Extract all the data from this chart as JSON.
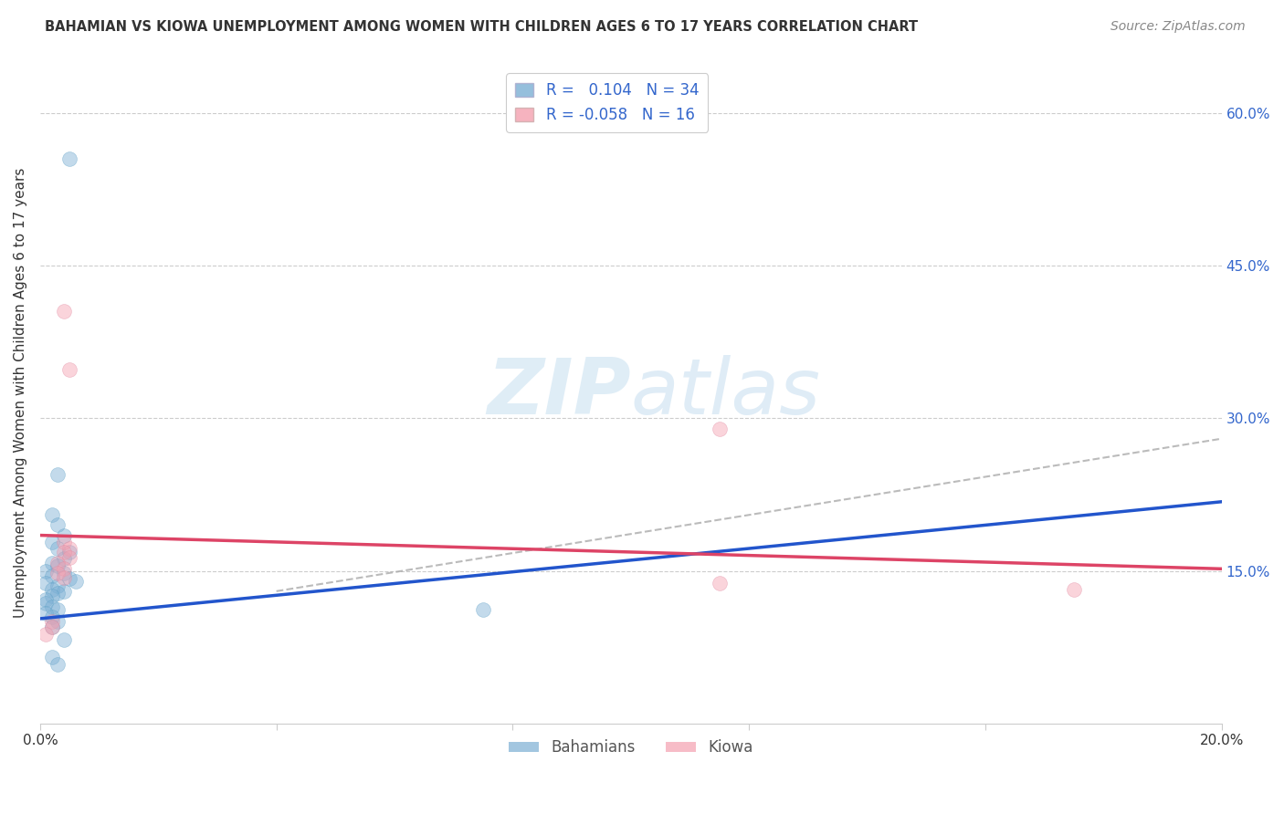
{
  "title": "BAHAMIAN VS KIOWA UNEMPLOYMENT AMONG WOMEN WITH CHILDREN AGES 6 TO 17 YEARS CORRELATION CHART",
  "source": "Source: ZipAtlas.com",
  "ylabel": "Unemployment Among Women with Children Ages 6 to 17 years",
  "xlim": [
    0.0,
    0.2
  ],
  "ylim": [
    0.0,
    0.65
  ],
  "xticks": [
    0.0,
    0.04,
    0.08,
    0.12,
    0.16,
    0.2
  ],
  "xtick_labels": [
    "0.0%",
    "",
    "",
    "",
    "",
    "20.0%"
  ],
  "ytick_labels_right": [
    "60.0%",
    "45.0%",
    "30.0%",
    "15.0%"
  ],
  "ytick_vals_right": [
    0.6,
    0.45,
    0.3,
    0.15
  ],
  "bahamian_points": [
    [
      0.005,
      0.555
    ],
    [
      0.003,
      0.245
    ],
    [
      0.002,
      0.205
    ],
    [
      0.003,
      0.195
    ],
    [
      0.004,
      0.185
    ],
    [
      0.002,
      0.178
    ],
    [
      0.003,
      0.172
    ],
    [
      0.005,
      0.168
    ],
    [
      0.004,
      0.162
    ],
    [
      0.002,
      0.158
    ],
    [
      0.003,
      0.155
    ],
    [
      0.001,
      0.15
    ],
    [
      0.004,
      0.148
    ],
    [
      0.002,
      0.145
    ],
    [
      0.005,
      0.142
    ],
    [
      0.006,
      0.14
    ],
    [
      0.001,
      0.138
    ],
    [
      0.003,
      0.135
    ],
    [
      0.002,
      0.132
    ],
    [
      0.004,
      0.13
    ],
    [
      0.003,
      0.128
    ],
    [
      0.002,
      0.125
    ],
    [
      0.001,
      0.122
    ],
    [
      0.001,
      0.118
    ],
    [
      0.002,
      0.115
    ],
    [
      0.003,
      0.112
    ],
    [
      0.001,
      0.108
    ],
    [
      0.002,
      0.105
    ],
    [
      0.003,
      0.1
    ],
    [
      0.002,
      0.095
    ],
    [
      0.004,
      0.082
    ],
    [
      0.002,
      0.065
    ],
    [
      0.003,
      0.058
    ],
    [
      0.075,
      0.112
    ]
  ],
  "kiowa_points": [
    [
      0.004,
      0.405
    ],
    [
      0.005,
      0.348
    ],
    [
      0.004,
      0.178
    ],
    [
      0.005,
      0.172
    ],
    [
      0.004,
      0.168
    ],
    [
      0.005,
      0.163
    ],
    [
      0.003,
      0.158
    ],
    [
      0.004,
      0.152
    ],
    [
      0.003,
      0.148
    ],
    [
      0.004,
      0.143
    ],
    [
      0.002,
      0.1
    ],
    [
      0.002,
      0.095
    ],
    [
      0.001,
      0.088
    ],
    [
      0.115,
      0.29
    ],
    [
      0.115,
      0.138
    ],
    [
      0.175,
      0.132
    ]
  ],
  "blue_line": {
    "x0": 0.0,
    "y0": 0.103,
    "x1": 0.2,
    "y1": 0.218
  },
  "pink_line": {
    "x0": 0.0,
    "y0": 0.185,
    "x1": 0.2,
    "y1": 0.152
  },
  "dashed_line": {
    "x0": 0.04,
    "y0": 0.13,
    "x1": 0.2,
    "y1": 0.28
  },
  "blue_line_color": "#2255cc",
  "pink_line_color": "#dd4466",
  "dashed_line_color": "#aaaaaa",
  "bahamian_color": "#7bafd4",
  "kiowa_color": "#f4a0b0",
  "bahamian_edge": "#5a9fc4",
  "kiowa_edge": "#e088a0",
  "background_color": "#ffffff",
  "watermark_zip_color": "#c8dff0",
  "watermark_atlas_color": "#c8dff0",
  "marker_size": 130,
  "marker_alpha": 0.45,
  "legend_R1": "0.104",
  "legend_N1": "34",
  "legend_R2": "-0.058",
  "legend_N2": "16"
}
